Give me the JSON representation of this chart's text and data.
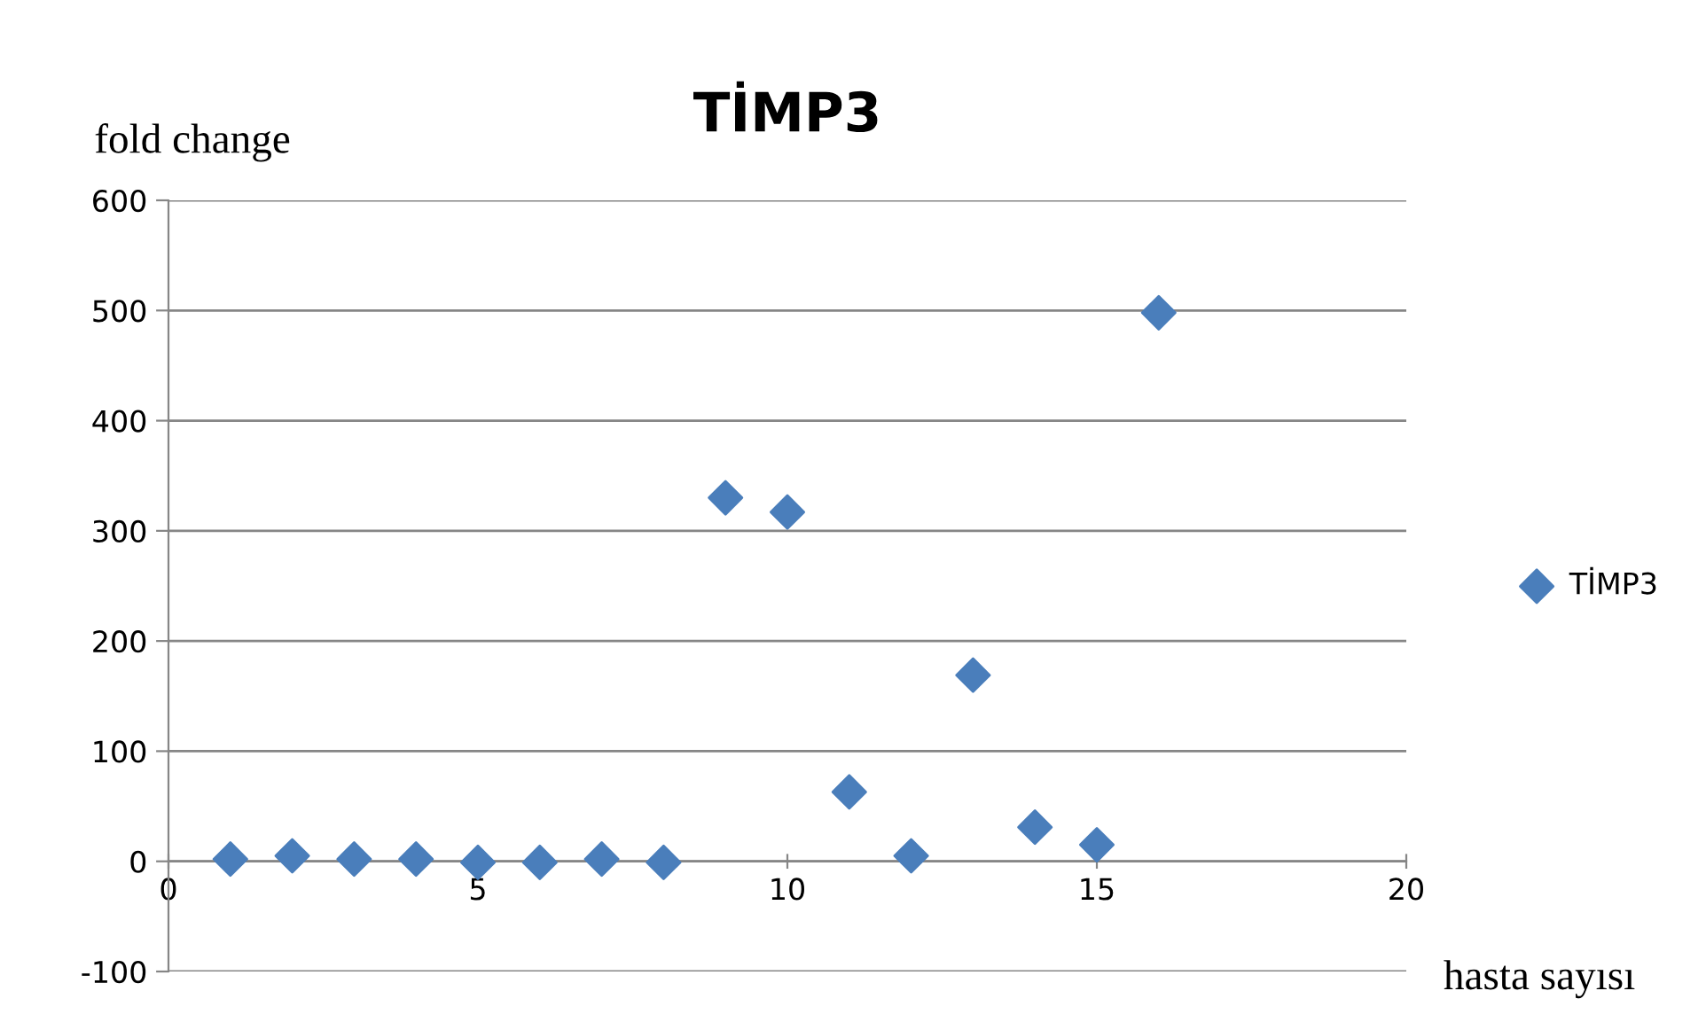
{
  "chart_data": {
    "type": "scatter",
    "title": "TİMP3",
    "xlabel": "hasta sayısı",
    "ylabel": "fold change",
    "x": [
      1,
      2,
      3,
      4,
      5,
      6,
      7,
      8,
      9,
      10,
      11,
      12,
      13,
      14,
      15,
      16
    ],
    "series": [
      {
        "name": "TİMP3",
        "color": "#4a7ebb",
        "values": [
          2,
          5,
          2,
          2,
          -1,
          -1,
          2,
          -1,
          330,
          317,
          63,
          5,
          169,
          31,
          15,
          498
        ]
      }
    ],
    "xlim": [
      0,
      20
    ],
    "xticks": [
      0,
      5,
      10,
      15,
      20
    ],
    "ylim": [
      -100,
      600
    ],
    "yticks": [
      -100,
      0,
      100,
      200,
      300,
      400,
      500,
      600
    ],
    "grid": "y",
    "legend": "right",
    "marker": "diamond"
  }
}
